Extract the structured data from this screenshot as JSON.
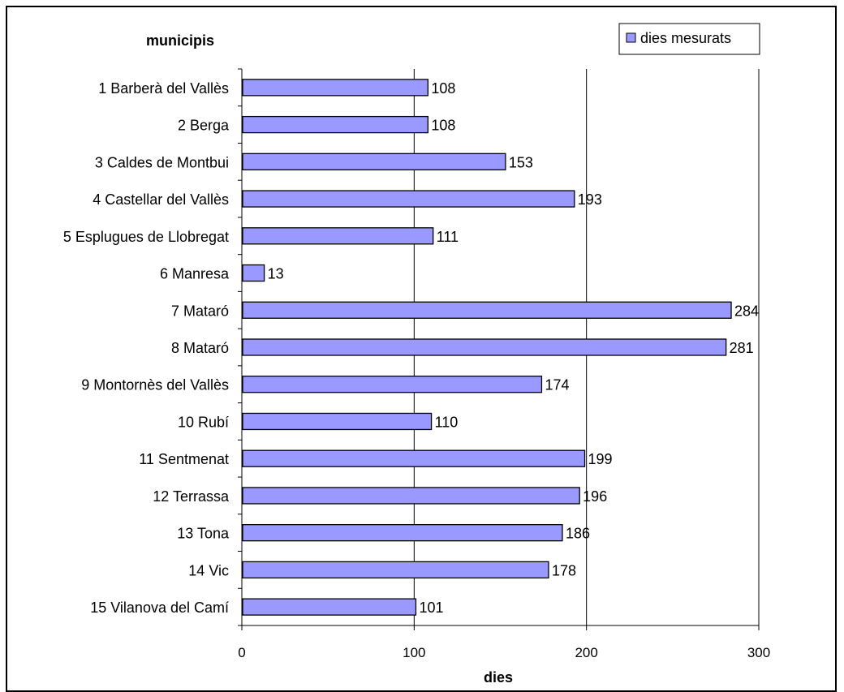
{
  "chart_data": {
    "type": "bar",
    "orientation": "horizontal",
    "ylabel": "municipis",
    "xlabel": "dies",
    "xlim": [
      0,
      300
    ],
    "xticks": [
      0,
      100,
      200,
      300
    ],
    "grid": true,
    "legend_position": "top-right",
    "categories": [
      "1 Barberà del Vallès",
      "2 Berga",
      "3 Caldes de Montbui",
      "4 Castellar del Vallès",
      "5 Esplugues de Llobregat",
      "6 Manresa",
      "7 Mataró",
      "8 Mataró",
      "9 Montornès del Vallès",
      "10 Rubí",
      "11 Sentmenat",
      "12 Terrassa",
      "13 Tona",
      "14 Vic",
      "15 Vilanova del Camí"
    ],
    "series": [
      {
        "name": "dies mesurats",
        "color": "#9999ff",
        "values": [
          108,
          108,
          153,
          193,
          111,
          13,
          284,
          281,
          174,
          110,
          199,
          196,
          186,
          178,
          101
        ]
      }
    ]
  }
}
